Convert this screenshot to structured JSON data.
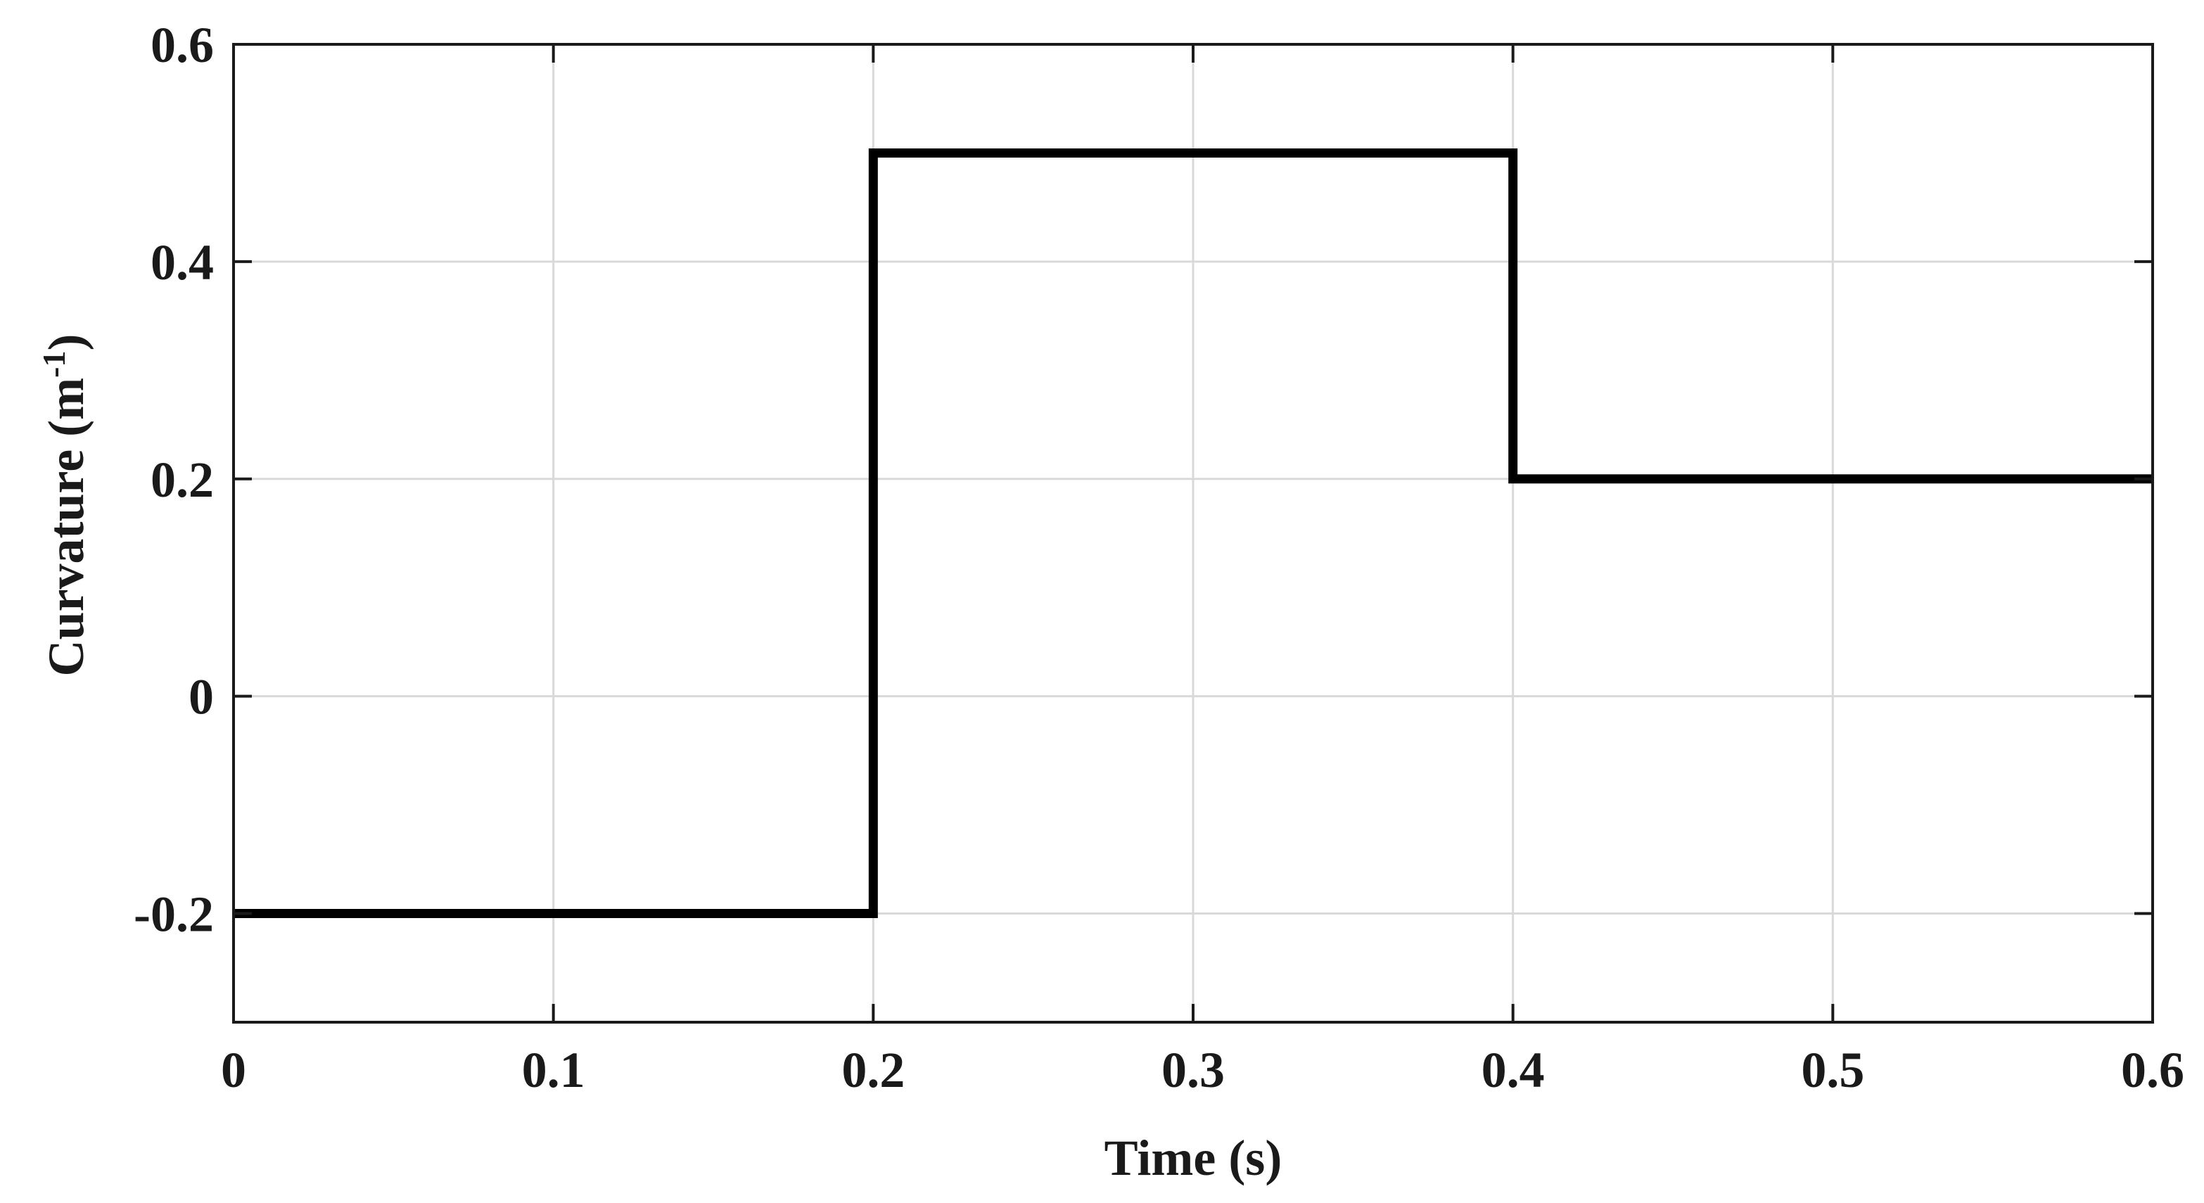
{
  "chart_data": {
    "type": "line",
    "title": "",
    "xlabel": "Time (s)",
    "ylabel": {
      "prefix": "Curvature (m",
      "superscript": "-1",
      "suffix": ")"
    },
    "xlim": [
      0,
      0.6
    ],
    "ylim": [
      -0.3,
      0.6
    ],
    "xticks": [
      0,
      0.1,
      0.2,
      0.3,
      0.4,
      0.5,
      0.6
    ],
    "yticks": [
      -0.2,
      0,
      0.2,
      0.4,
      0.6
    ],
    "xtick_labels": [
      "0",
      "0.1",
      "0.2",
      "0.3",
      "0.4",
      "0.5",
      "0.6"
    ],
    "ytick_labels": [
      "-0.2",
      "0",
      "0.2",
      "0.4",
      "0.6"
    ],
    "grid": true,
    "legend": "none",
    "series": [
      {
        "x": [
          0,
          0.2,
          0.2,
          0.4,
          0.4,
          0.6
        ],
        "y": [
          -0.2,
          -0.2,
          0.5,
          0.5,
          0.2,
          0.2
        ],
        "color": "#000000"
      }
    ],
    "colors": {
      "line": "#000000",
      "grid": "#d9d9d9",
      "axes": "#1a1a1a",
      "text": "#1a1a1a"
    }
  }
}
